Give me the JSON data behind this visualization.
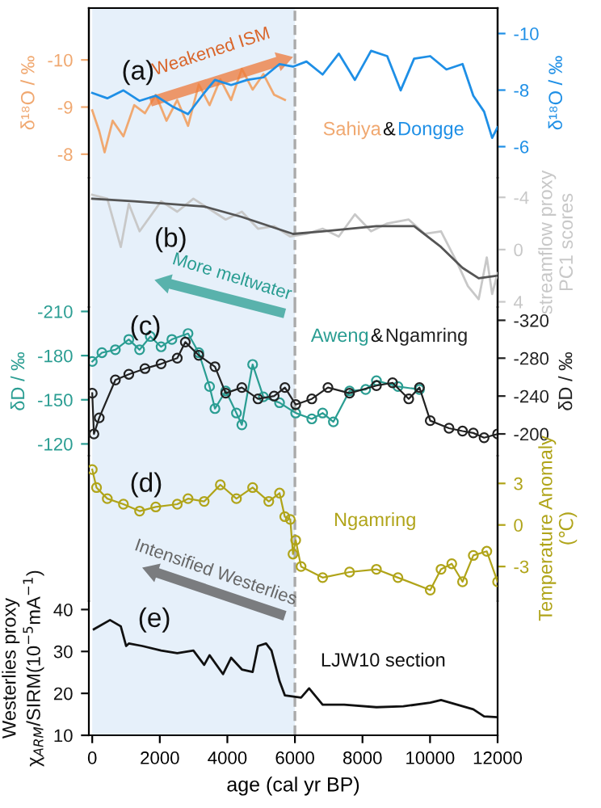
{
  "chart_data": [
    {
      "type": "line",
      "xlim": [
        -100,
        12000
      ],
      "xticks": [
        0,
        2000,
        4000,
        6000,
        8000,
        10000,
        12000
      ],
      "tick_labels": "y",
      "ylim": [
        -7.5,
        -11.1
      ],
      "yticks": [
        -10,
        -9,
        -8
      ],
      "y2lim": [
        -4.9,
        -10.9
      ],
      "y2ticks": [
        -10,
        -8,
        -6
      ],
      "ylabel": "δ¹⁸O / ‰",
      "y2label": "δ¹⁸O / ‰",
      "bands": [
        {
          "axis": "x",
          "from": 0,
          "to": 6000,
          "color": "#e6f0fa"
        }
      ],
      "ref_lines": [
        {
          "axis": "x",
          "value": 6000,
          "color": "#aaaaaa",
          "line_style": "dashed"
        }
      ],
      "annotations": [
        "(a)",
        "Weakened ISM",
        "&"
      ],
      "series": [
        {
          "name": "Sahiya",
          "color": "#f0a870",
          "axis": "y",
          "x": [
            0,
            207,
            366,
            605,
            924,
            1243,
            1561,
            1880,
            2198,
            2517,
            2836,
            3154,
            3473,
            3792,
            4111,
            4429,
            4748,
            5067,
            5385,
            5704
          ],
          "values": [
            -8.93,
            -8.49,
            -8.04,
            -8.71,
            -8.38,
            -9.04,
            -8.87,
            -9.26,
            -8.71,
            -9.15,
            -8.6,
            -9.48,
            -9.04,
            -9.59,
            -9.15,
            -9.81,
            -9.37,
            -9.7,
            -9.26,
            -9.15
          ]
        },
        {
          "name": "Dongge",
          "color": "#1e8fe6",
          "axis": "y2",
          "x": [
            0,
            446,
            924,
            1402,
            1880,
            2358,
            2836,
            3314,
            3633,
            4111,
            4589,
            5067,
            5545,
            5943,
            6342,
            6820,
            7298,
            7776,
            8254,
            8732,
            9130,
            9528,
            10006,
            10484,
            10962,
            11281,
            11600,
            11839,
            12000
          ],
          "values": [
            -7.9,
            -7.71,
            -7.99,
            -7.62,
            -7.8,
            -7.43,
            -7.15,
            -7.9,
            -8.36,
            -8.18,
            -8.36,
            -8.45,
            -8.92,
            -8.83,
            -9.01,
            -8.55,
            -9.29,
            -8.36,
            -9.39,
            -9.2,
            -7.99,
            -9.11,
            -9.2,
            -8.73,
            -8.92,
            -7.8,
            -7.24,
            -6.31,
            -6.69
          ]
        }
      ]
    },
    {
      "type": "line",
      "xlim": [
        -100,
        12000
      ],
      "xticks": [
        0,
        2000,
        4000,
        6000,
        8000,
        10000,
        12000
      ],
      "tick_labels": "y",
      "y2lim": [
        4.4,
        -5.5
      ],
      "y2ticks": [
        -4,
        0,
        4
      ],
      "y2label": "streamflow proxy\nPC1 scores",
      "bands": [
        {
          "axis": "x",
          "from": 0,
          "to": 6000,
          "color": "#e6f0fa"
        }
      ],
      "ref_lines": [
        {
          "axis": "x",
          "value": 6000,
          "color": "#aaaaaa",
          "line_style": "dashed"
        }
      ],
      "annotations": [
        "(b)"
      ],
      "series": [
        {
          "color": "#c8c8c8",
          "axis": "y2",
          "x": [
            0,
            446,
            845,
            1083,
            1402,
            2039,
            2517,
            2995,
            3473,
            3951,
            4429,
            4907,
            5385,
            5863,
            6342,
            6820,
            7298,
            7776,
            8254,
            8732,
            9369,
            9847,
            10325,
            10803,
            11121,
            11440,
            11680,
            11839,
            12000
          ],
          "values": [
            -4.2,
            -3.9,
            -0.2,
            -3.5,
            -1.4,
            -3.7,
            -2.9,
            -3.9,
            -3.1,
            -2.3,
            -2.9,
            -1.6,
            -1.8,
            -1.0,
            -1.2,
            -1.6,
            -1.0,
            -2.7,
            -1.4,
            -2.0,
            -2.3,
            -1.2,
            -1.4,
            1.0,
            2.8,
            3.8,
            0.6,
            3.4,
            1.8
          ]
        },
        {
          "color": "#555555",
          "axis": "y2",
          "x": [
            0,
            1243,
            3314,
            4429,
            5943,
            6820,
            8413,
            9528,
            10325,
            10962,
            11440,
            12000
          ],
          "values": [
            -3.9,
            -3.7,
            -3.3,
            -2.5,
            -1.2,
            -1.4,
            -1.8,
            -1.8,
            -0.2,
            1.4,
            2.2,
            2.0
          ]
        }
      ]
    },
    {
      "type": "line",
      "xlim": [
        -100,
        12000
      ],
      "xticks": [
        0,
        2000,
        4000,
        6000,
        8000,
        10000,
        12000
      ],
      "tick_labels": "y",
      "marker": "circle",
      "ylim": [
        -112,
        -213
      ],
      "yticks": [
        -210,
        -180,
        -150,
        -120
      ],
      "y2lim": [
        -177,
        -334
      ],
      "y2ticks": [
        -320,
        -280,
        -240,
        -200
      ],
      "ylabel": "δD / ‰",
      "y2label": "δD / ‰",
      "bands": [
        {
          "axis": "x",
          "from": 0,
          "to": 6000,
          "color": "#e6f0fa"
        }
      ],
      "ref_lines": [
        {
          "axis": "x",
          "value": 6000,
          "color": "#aaaaaa",
          "line_style": "dashed"
        }
      ],
      "annotations": [
        "(c)",
        "More meltwater",
        "&"
      ],
      "series": [
        {
          "name": "Aweng",
          "color": "#2a9d92",
          "axis": "y",
          "x": [
            0,
            287,
            685,
            1083,
            1402,
            1720,
            2039,
            2358,
            2836,
            3154,
            3473,
            3633,
            3951,
            4269,
            4429,
            4748,
            5067,
            5545,
            6023,
            6500,
            6820,
            7139,
            7617,
            8094,
            8413,
            9050,
            9687
          ],
          "values": [
            -176,
            -182,
            -184,
            -191,
            -184,
            -193,
            -186,
            -191,
            -195,
            -182,
            -159,
            -144,
            -156,
            -141,
            -133,
            -174,
            -152,
            -148,
            -141,
            -137,
            -141,
            -135,
            -156,
            -157,
            -163,
            -159,
            -157
          ]
        },
        {
          "name": "Ngamring",
          "color": "#222222",
          "axis": "y2",
          "x": [
            0,
            50,
            207,
            685,
            1083,
            1561,
            2039,
            2517,
            2756,
            3154,
            3633,
            3951,
            4429,
            4907,
            5385,
            5704,
            6023,
            6500,
            6978,
            7617,
            8413,
            8891,
            9369,
            9687,
            10006,
            10562,
            10962,
            11281,
            11600,
            12000
          ],
          "values": [
            -243,
            -200,
            -217,
            -257,
            -263,
            -269,
            -274,
            -280,
            -297,
            -283,
            -271,
            -243,
            -249,
            -237,
            -240,
            -249,
            -231,
            -237,
            -249,
            -243,
            -251,
            -254,
            -237,
            -249,
            -214,
            -206,
            -203,
            -201,
            -196,
            -200
          ]
        }
      ]
    },
    {
      "type": "line",
      "xlim": [
        -100,
        12000
      ],
      "xticks": [
        0,
        2000,
        4000,
        6000,
        8000,
        10000,
        12000
      ],
      "tick_labels": "y",
      "marker": "circle",
      "y2lim": [
        -5.5,
        5
      ],
      "y2ticks": [
        3,
        0,
        -3
      ],
      "y2label": "Temperature Anomaly\n(℃)",
      "bands": [
        {
          "axis": "x",
          "from": 0,
          "to": 6000,
          "color": "#e6f0fa"
        }
      ],
      "ref_lines": [
        {
          "axis": "x",
          "value": 6000,
          "color": "#aaaaaa",
          "line_style": "dashed"
        }
      ],
      "annotations": [
        "(d)"
      ],
      "series": [
        {
          "name": "Ngamring",
          "color": "#b0a419",
          "axis": "y2",
          "x": [
            0,
            127,
            446,
            924,
            1402,
            1880,
            2517,
            2836,
            3314,
            3792,
            4269,
            4748,
            5226,
            5545,
            5700,
            5863,
            5943,
            6023,
            6182,
            6820,
            7617,
            8413,
            9050,
            10006,
            10325,
            10643,
            10962,
            11281,
            11680,
            12000
          ],
          "values": [
            4.0,
            2.7,
            1.9,
            1.5,
            1.0,
            1.3,
            1.5,
            1.9,
            1.7,
            2.9,
            1.9,
            2.7,
            1.7,
            2.3,
            0.6,
            0.4,
            -2.1,
            -1.1,
            -3.0,
            -3.8,
            -3.4,
            -3.2,
            -3.8,
            -4.7,
            -3.2,
            -2.8,
            -4.1,
            -2.2,
            -1.9,
            -4.1
          ]
        }
      ]
    },
    {
      "type": "line",
      "xlim": [
        -100,
        12000
      ],
      "xticks": [
        0,
        2000,
        4000,
        6000,
        8000,
        10000,
        12000
      ],
      "xlabel": "age (cal yr BP)",
      "ylim": [
        10,
        42
      ],
      "yticks": [
        10,
        20,
        30,
        40
      ],
      "ylabel": "Westerlies proxy\nχ$_{ARM}$/SIRM(10$^{−5}$mA$^{−1}$)",
      "bands": [
        {
          "axis": "x",
          "from": 0,
          "to": 6000,
          "color": "#e6f0fa"
        }
      ],
      "ref_lines": [
        {
          "axis": "x",
          "value": 6000,
          "color": "#aaaaaa",
          "line_style": "dashed"
        }
      ],
      "annotations": [
        "(e)",
        "Intensified Westerlies"
      ],
      "series": [
        {
          "name": "LJW10 section",
          "color": "#111111",
          "axis": "y",
          "x": [
            48,
            526,
            845,
            1003,
            1083,
            1482,
            2039,
            2517,
            2995,
            3314,
            3473,
            3871,
            4111,
            4429,
            4748,
            4907,
            5146,
            5306,
            5545,
            5704,
            6182,
            6420,
            6820,
            7457,
            8413,
            9209,
            10006,
            10325,
            10803,
            11281,
            11600,
            12000
          ],
          "values": [
            35.3,
            37.5,
            36.0,
            31.3,
            31.9,
            31.3,
            30.2,
            29.6,
            30.2,
            26.8,
            29.1,
            24.6,
            28.5,
            25.7,
            25.1,
            31.3,
            31.9,
            30.2,
            22.9,
            19.5,
            19.0,
            21.2,
            17.3,
            17.3,
            16.7,
            16.9,
            17.8,
            18.4,
            17.3,
            16.2,
            14.5,
            14.3
          ]
        }
      ]
    }
  ]
}
